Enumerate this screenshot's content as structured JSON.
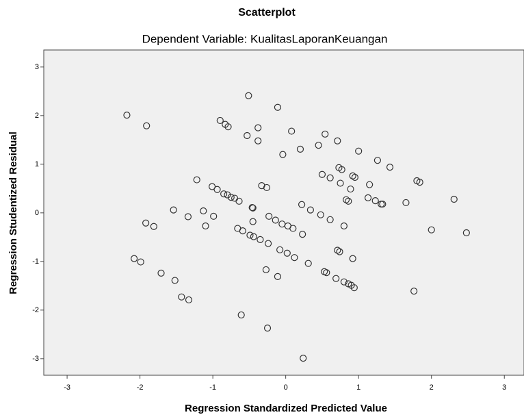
{
  "chart_data": {
    "type": "scatter",
    "title": "Scatterplot",
    "subtitle": "Dependent Variable: KualitasLaporanKeuangan",
    "x_label": "Regression Standardized Predicted Value",
    "y_label": "Regression Studentized Residual",
    "xlim": [
      -3.32,
      3.27
    ],
    "ylim": [
      -3.34,
      3.35
    ],
    "xticks": [
      -3,
      -2,
      -1,
      0,
      1,
      2,
      3
    ],
    "yticks": [
      -3,
      -2,
      -1,
      0,
      1,
      2,
      3
    ],
    "grid": false,
    "color": "#333333",
    "x": [
      -2.18,
      -1.91,
      -0.51,
      -0.11,
      -0.9,
      -0.83,
      -0.79,
      -0.38,
      -0.53,
      0.08,
      -0.38,
      -0.04,
      0.2,
      0.54,
      0.71,
      0.45,
      1.0,
      1.26,
      1.43,
      0.73,
      0.77,
      0.92,
      0.95,
      0.5,
      0.61,
      0.75,
      0.89,
      1.15,
      1.8,
      1.84,
      1.13,
      1.23,
      1.31,
      1.33,
      1.65,
      2.31,
      0.83,
      0.86,
      -1.22,
      -1.01,
      -0.94,
      -0.85,
      -0.8,
      -0.75,
      -0.7,
      -0.64,
      -0.33,
      -0.26,
      -0.46,
      -0.45,
      0.22,
      0.34,
      0.48,
      0.61,
      0.8,
      -1.54,
      -1.13,
      -1.34,
      -0.99,
      -1.1,
      -1.92,
      -1.81,
      -0.23,
      -0.14,
      -0.05,
      0.03,
      0.1,
      -0.45,
      -0.66,
      -0.59,
      -0.49,
      -0.44,
      -0.35,
      -0.24,
      0.23,
      2.0,
      2.48,
      -0.08,
      0.02,
      0.12,
      0.71,
      0.74,
      0.92,
      0.31,
      -2.08,
      -1.99,
      -1.71,
      -1.52,
      -1.43,
      -1.33,
      -0.27,
      -0.11,
      0.53,
      0.56,
      0.69,
      0.8,
      0.86,
      0.9,
      0.94,
      1.76,
      -0.61,
      -0.25,
      0.24
    ],
    "values": [
      2.01,
      1.79,
      2.41,
      2.17,
      1.9,
      1.82,
      1.77,
      1.75,
      1.59,
      1.68,
      1.48,
      1.2,
      1.31,
      1.62,
      1.48,
      1.39,
      1.27,
      1.08,
      0.94,
      0.93,
      0.89,
      0.76,
      0.73,
      0.79,
      0.72,
      0.61,
      0.49,
      0.58,
      0.66,
      0.63,
      0.31,
      0.25,
      0.18,
      0.18,
      0.21,
      0.28,
      0.27,
      0.24,
      0.68,
      0.54,
      0.48,
      0.39,
      0.37,
      0.32,
      0.3,
      0.24,
      0.56,
      0.52,
      0.11,
      0.1,
      0.17,
      0.06,
      -0.04,
      -0.14,
      -0.27,
      0.06,
      0.04,
      -0.08,
      -0.07,
      -0.27,
      -0.21,
      -0.28,
      -0.07,
      -0.15,
      -0.23,
      -0.27,
      -0.32,
      -0.18,
      -0.32,
      -0.37,
      -0.46,
      -0.49,
      -0.55,
      -0.63,
      -0.44,
      -0.35,
      -0.41,
      -0.76,
      -0.83,
      -0.92,
      -0.77,
      -0.8,
      -0.94,
      -1.04,
      -0.94,
      -1.01,
      -1.24,
      -1.39,
      -1.73,
      -1.79,
      -1.17,
      -1.31,
      -1.21,
      -1.23,
      -1.35,
      -1.42,
      -1.46,
      -1.49,
      -1.54,
      -1.61,
      -2.1,
      -2.37,
      -2.99
    ]
  }
}
